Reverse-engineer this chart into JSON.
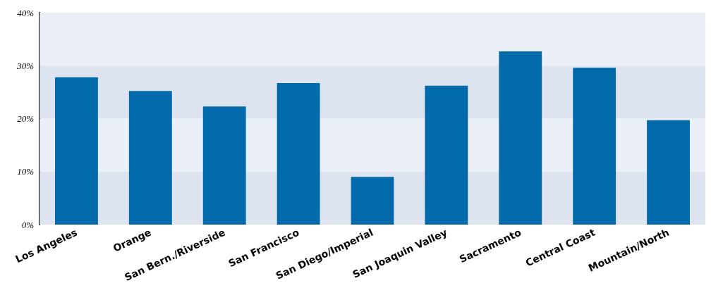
{
  "chart_data": {
    "type": "bar",
    "categories": [
      "Los Angeles",
      "Orange",
      "San Bern./Riverside",
      "San Francisco",
      "San Diego/Imperial",
      "San Joaquin Valley",
      "Sacramento",
      "Central Coast",
      "Mountain/North"
    ],
    "values": [
      27.8,
      25.2,
      22.3,
      26.7,
      9.0,
      26.2,
      32.7,
      29.6,
      19.7
    ],
    "color": "#006aaa",
    "ylim": [
      0,
      40
    ],
    "yticks": [
      {
        "value": 0,
        "label": "0%"
      },
      {
        "value": 10,
        "label": "10%"
      },
      {
        "value": 20,
        "label": "20%"
      },
      {
        "value": 30,
        "label": "30%"
      },
      {
        "value": 40,
        "label": "40%"
      }
    ],
    "grid": false,
    "bands": [
      {
        "axis": "y",
        "from": 0,
        "to": 10,
        "color": "#dde3ef"
      },
      {
        "axis": "y",
        "from": 10,
        "to": 20,
        "color": "#eaeef6"
      },
      {
        "axis": "y",
        "from": 20,
        "to": 30,
        "color": "#dde3ef"
      },
      {
        "axis": "y",
        "from": 30,
        "to": 40,
        "color": "#eaeef6"
      }
    ]
  }
}
